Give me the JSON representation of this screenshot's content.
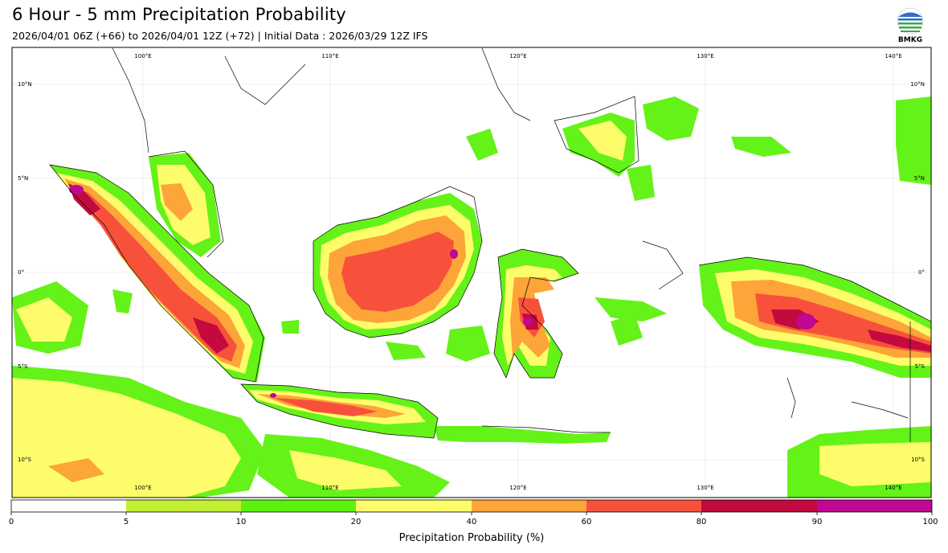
{
  "header": {
    "title": "6 Hour - 5 mm Precipitation Probability",
    "subtitle": "2026/04/01 06Z (+66) to 2026/04/01 12Z (+72) | Initial Data : 2026/03/29 12Z IFS",
    "logo_text": "BMKG"
  },
  "map": {
    "lon_labels": [
      "100°E",
      "110°E",
      "120°E",
      "130°E",
      "140°E"
    ],
    "lat_labels": [
      "10°N",
      "5°N",
      "0°",
      "5°S",
      "10°S"
    ]
  },
  "colorbar": {
    "label": "Precipitation Probability (%)",
    "ticks": [
      "0",
      "5",
      "10",
      "20",
      "40",
      "60",
      "80",
      "90",
      "100"
    ],
    "colors": [
      "#ffffff",
      "#c3f032",
      "#5cf20c",
      "#fdfd6b",
      "#fda539",
      "#f7513c",
      "#c20a3e",
      "#c00892"
    ]
  }
}
